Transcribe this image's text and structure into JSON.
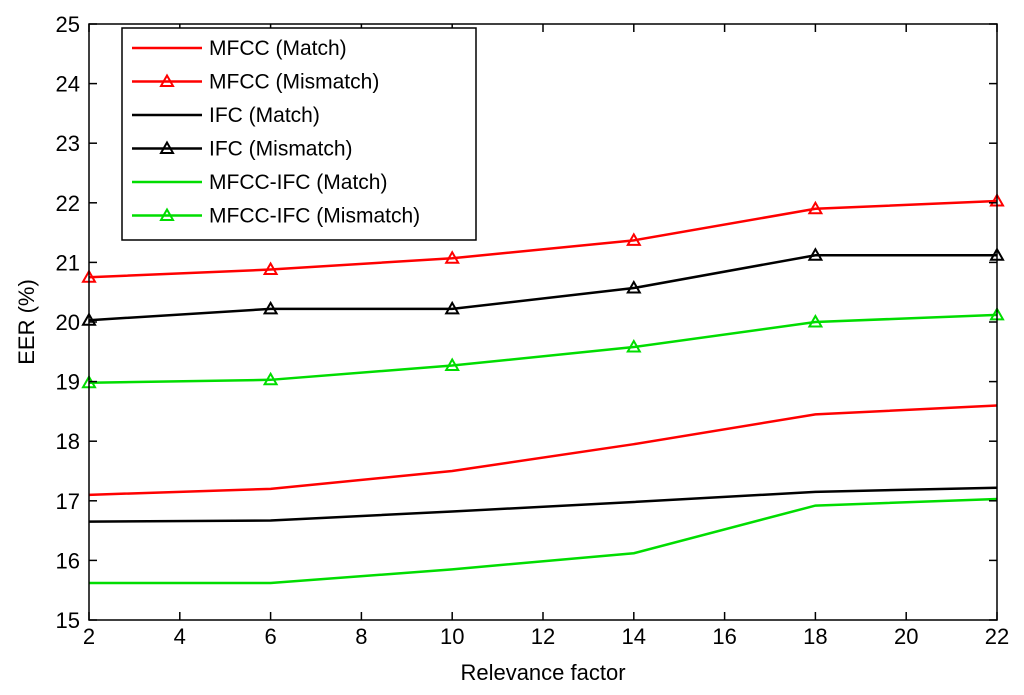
{
  "chart_data": {
    "type": "line",
    "title": "",
    "xlabel": "Relevance factor",
    "ylabel": "EER (%)",
    "xlim": [
      2,
      22
    ],
    "ylim": [
      15,
      25
    ],
    "xticks": [
      2,
      4,
      6,
      8,
      10,
      12,
      14,
      16,
      18,
      20,
      22
    ],
    "yticks": [
      15,
      16,
      17,
      18,
      19,
      20,
      21,
      22,
      23,
      24,
      25
    ],
    "grid": false,
    "legend_position": "top-left",
    "x": [
      2,
      6,
      10,
      14,
      18,
      22
    ],
    "series": [
      {
        "name": "MFCC (Match)",
        "color": "#ff0000",
        "marker": "none",
        "values": [
          17.1,
          17.2,
          17.5,
          17.95,
          18.45,
          18.6
        ]
      },
      {
        "name": "MFCC (Mismatch)",
        "color": "#ff0000",
        "marker": "triangle",
        "values": [
          20.75,
          20.88,
          21.07,
          21.37,
          21.9,
          22.03
        ]
      },
      {
        "name": "IFC (Match)",
        "color": "#000000",
        "marker": "none",
        "values": [
          16.65,
          16.67,
          16.82,
          16.98,
          17.15,
          17.22
        ]
      },
      {
        "name": "IFC (Mismatch)",
        "color": "#000000",
        "marker": "triangle",
        "values": [
          20.03,
          20.22,
          20.22,
          20.57,
          21.12,
          21.12
        ]
      },
      {
        "name": "MFCC-IFC (Match)",
        "color": "#00dd00",
        "marker": "none",
        "values": [
          15.62,
          15.62,
          15.85,
          16.12,
          16.92,
          17.03
        ]
      },
      {
        "name": "MFCC-IFC (Mismatch)",
        "color": "#00dd00",
        "marker": "triangle",
        "values": [
          18.98,
          19.03,
          19.27,
          19.58,
          20.0,
          20.12
        ]
      }
    ]
  }
}
